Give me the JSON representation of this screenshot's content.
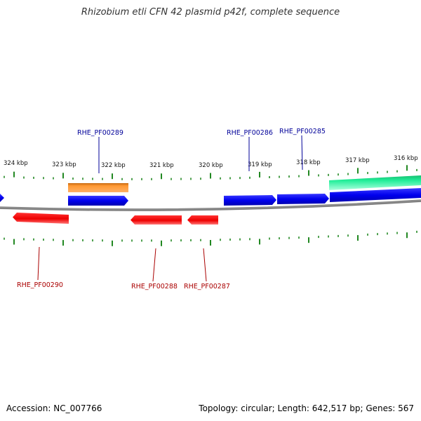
{
  "title": "Rhizobium etli CFN 42 plasmid p42f, complete sequence",
  "accession": "Accession: NC_007766",
  "summary": "Topology: circular; Length: 642,517 bp; Genes: 567",
  "colors": {
    "backbone": "#808080",
    "forward_gene": "#0000ee",
    "reverse_gene": "#ee0000",
    "orange_feature": "#ff9933",
    "green_feature": "#22ee99",
    "ticks": "#228822",
    "forward_label": "#000099",
    "reverse_label": "#aa0000"
  },
  "scale": {
    "ticks_kbp": [
      "324 kbp",
      "323 kbp",
      "322 kbp",
      "321 kbp",
      "320 kbp",
      "319 kbp",
      "318 kbp",
      "317 kbp",
      "316 kbp"
    ]
  },
  "genes": {
    "forward": [
      {
        "label": "RHE_PF00289"
      },
      {
        "label": "RHE_PF00286"
      },
      {
        "label": "RHE_PF00285"
      }
    ],
    "reverse": [
      {
        "label": "RHE_PF00290"
      },
      {
        "label": "RHE_PF00288"
      },
      {
        "label": "RHE_PF00287"
      }
    ]
  }
}
